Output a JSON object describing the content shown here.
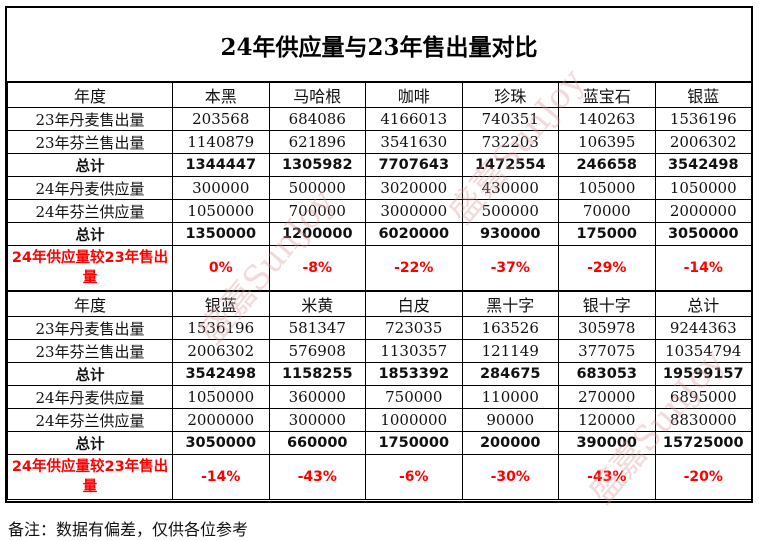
{
  "title": "24年供应量与23年售出量对比",
  "table1": {
    "header": [
      "年度",
      "本黑",
      "马哈根",
      "咖啡",
      "珍珠",
      "蓝宝石",
      "银蓝"
    ],
    "rows": [
      {
        "label": "23年丹麦售出量",
        "values": [
          "203568",
          "684086",
          "4166013",
          "740351",
          "140263",
          "1536196"
        ]
      },
      {
        "label": "23年芬兰售出量",
        "values": [
          "1140879",
          "621896",
          "3541630",
          "732203",
          "106395",
          "2006302"
        ]
      },
      {
        "label": "总计",
        "values": [
          "1344447",
          "1305982",
          "7707643",
          "1472554",
          "246658",
          "3542498"
        ]
      },
      {
        "label": "24年丹麦供应量",
        "values": [
          "300000",
          "500000",
          "3020000",
          "430000",
          "105000",
          "1050000"
        ]
      },
      {
        "label": "24年芬兰供应量",
        "values": [
          "1050000",
          "700000",
          "3000000",
          "500000",
          "70000",
          "2000000"
        ]
      },
      {
        "label": "总计",
        "values": [
          "1350000",
          "1200000",
          "6020000",
          "930000",
          "175000",
          "3050000"
        ]
      },
      {
        "label": "24年供应量较23年售出量",
        "values": [
          "0%",
          "-8%",
          "-22%",
          "-37%",
          "-29%",
          "-14%"
        ]
      }
    ]
  },
  "table2": {
    "header": [
      "年度",
      "银蓝",
      "米黄",
      "白皮",
      "黑十字",
      "银十字",
      "总计"
    ],
    "rows": [
      {
        "label": "23年丹麦售出量",
        "values": [
          "1536196",
          "581347",
          "723035",
          "163526",
          "305978",
          "9244363"
        ]
      },
      {
        "label": "23年芬兰售出量",
        "values": [
          "2006302",
          "576908",
          "1130357",
          "121149",
          "377075",
          "10354794"
        ]
      },
      {
        "label": "总计",
        "values": [
          "3542498",
          "1158255",
          "1853392",
          "284675",
          "683053",
          "19599157"
        ]
      },
      {
        "label": "24年丹麦供应量",
        "values": [
          "1050000",
          "360000",
          "750000",
          "110000",
          "270000",
          "6895000"
        ]
      },
      {
        "label": "24年芬兰供应量",
        "values": [
          "2000000",
          "300000",
          "1000000",
          "90000",
          "120000",
          "8830000"
        ]
      },
      {
        "label": "总计",
        "values": [
          "3050000",
          "660000",
          "1750000",
          "200000",
          "390000",
          "15725000"
        ]
      },
      {
        "label": "24年供应量较23年售出量",
        "values": [
          "-14%",
          "-43%",
          "-6%",
          "-30%",
          "-43%",
          "-20%"
        ]
      }
    ]
  },
  "note": "备注：数据有偏差，仅供各位参考",
  "watermark": "盛嘉SunJoy",
  "colors": {
    "highlight_red": "#ff0000",
    "border": "#000000"
  }
}
